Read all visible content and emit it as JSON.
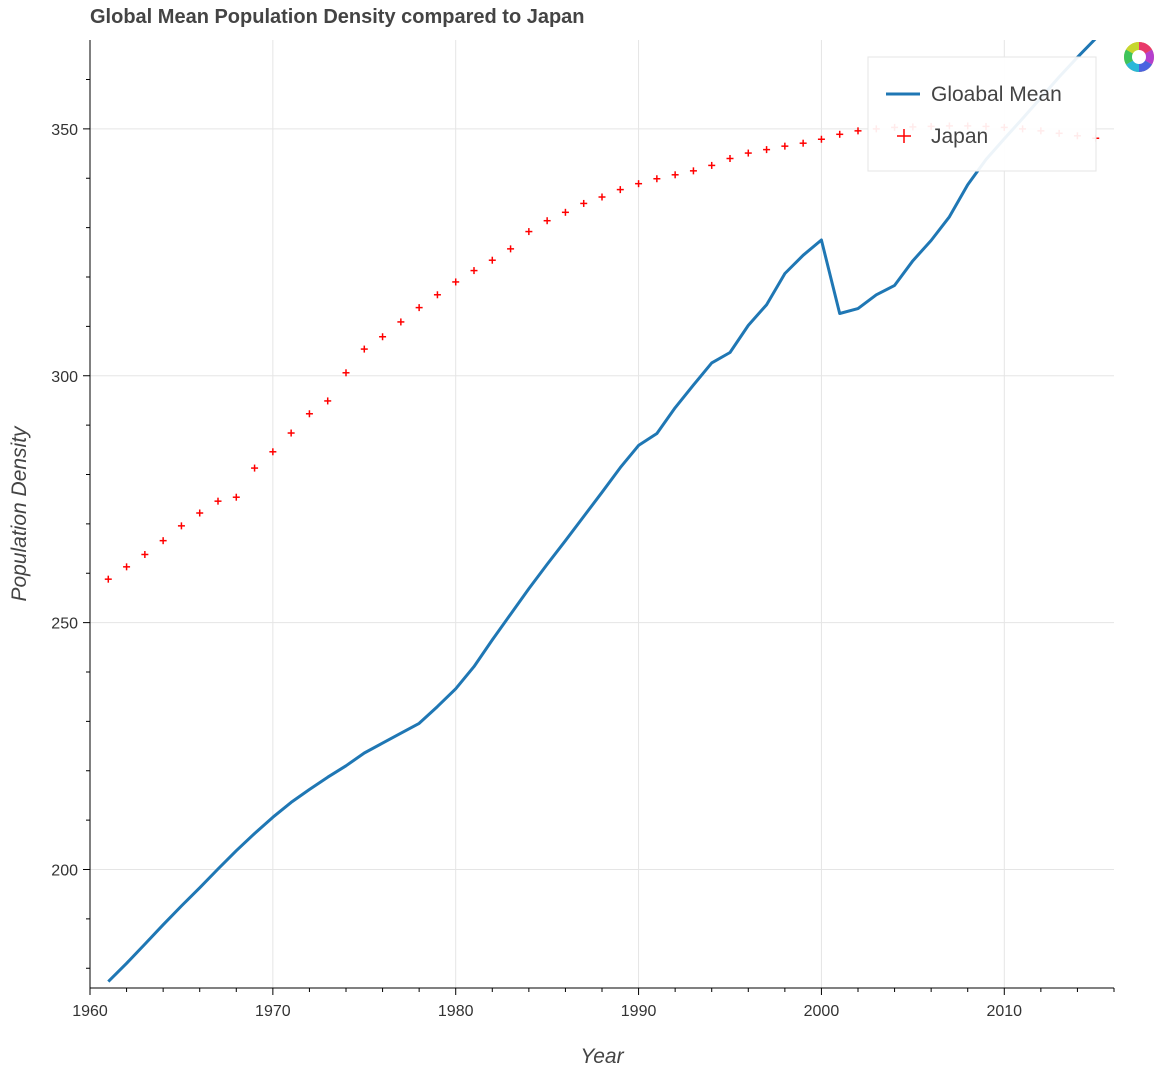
{
  "chart_data": {
    "type": "line",
    "title": "Global Mean Population Density compared to Japan",
    "xlabel": "Year",
    "ylabel": "Population Density",
    "xlim": [
      1960,
      2016
    ],
    "ylim": [
      176,
      368
    ],
    "x_ticks": [
      1960,
      1970,
      1980,
      1990,
      2000,
      2010
    ],
    "y_ticks": [
      200,
      250,
      300,
      350
    ],
    "grid": true,
    "legend_position": "top-right",
    "series": [
      {
        "name": "Gloabal Mean",
        "kind": "line",
        "color": "#1f77b4",
        "x": [
          1961,
          1962,
          1963,
          1964,
          1965,
          1966,
          1967,
          1968,
          1969,
          1970,
          1971,
          1972,
          1973,
          1974,
          1975,
          1976,
          1977,
          1978,
          1979,
          1980,
          1981,
          1982,
          1983,
          1984,
          1985,
          1986,
          1987,
          1988,
          1989,
          1990,
          1991,
          1992,
          1993,
          1994,
          1995,
          1996,
          1997,
          1998,
          1999,
          2000,
          2001,
          2002,
          2003,
          2004,
          2005,
          2006,
          2007,
          2008,
          2009,
          2010,
          2011,
          2012,
          2013,
          2014,
          2015
        ],
        "y": [
          177.3,
          181.0,
          184.9,
          188.8,
          192.6,
          196.3,
          200.1,
          203.8,
          207.3,
          210.6,
          213.6,
          216.2,
          218.7,
          221.0,
          223.6,
          225.6,
          227.6,
          229.6,
          233.0,
          236.6,
          241.1,
          246.5,
          251.7,
          256.9,
          261.8,
          266.6,
          271.5,
          276.4,
          281.4,
          285.9,
          288.3,
          293.5,
          298.1,
          302.6,
          304.7,
          310.2,
          314.4,
          320.7,
          324.4,
          327.5,
          312.6,
          313.6,
          316.4,
          318.3,
          323.3,
          327.4,
          332.2,
          338.7,
          343.8,
          348.0,
          352.1,
          356.3,
          360.5,
          364.5,
          368.3
        ]
      },
      {
        "name": "Japan",
        "kind": "marker",
        "marker": "+",
        "color": "#ff0000",
        "x": [
          1961,
          1962,
          1963,
          1964,
          1965,
          1966,
          1967,
          1968,
          1969,
          1970,
          1971,
          1972,
          1973,
          1974,
          1975,
          1976,
          1977,
          1978,
          1979,
          1980,
          1981,
          1982,
          1983,
          1984,
          1985,
          1986,
          1987,
          1988,
          1989,
          1990,
          1991,
          1992,
          1993,
          1994,
          1995,
          1996,
          1997,
          1998,
          1999,
          2000,
          2001,
          2002,
          2003,
          2004,
          2005,
          2006,
          2007,
          2008,
          2009,
          2010,
          2011,
          2012,
          2013,
          2014,
          2015
        ],
        "y": [
          258.8,
          261.3,
          263.8,
          266.6,
          269.6,
          272.2,
          274.6,
          275.4,
          281.3,
          284.6,
          288.4,
          292.3,
          294.9,
          300.6,
          305.4,
          307.9,
          310.9,
          313.8,
          316.4,
          319.0,
          321.3,
          323.4,
          325.7,
          329.2,
          331.4,
          333.1,
          334.9,
          336.2,
          337.7,
          338.9,
          339.9,
          340.7,
          341.5,
          342.6,
          344.0,
          345.1,
          345.8,
          346.5,
          347.1,
          347.9,
          348.9,
          349.6,
          350.0,
          350.3,
          350.4,
          350.5,
          350.6,
          350.6,
          350.5,
          350.3,
          350.0,
          349.6,
          349.1,
          348.6,
          348.1
        ]
      }
    ]
  }
}
